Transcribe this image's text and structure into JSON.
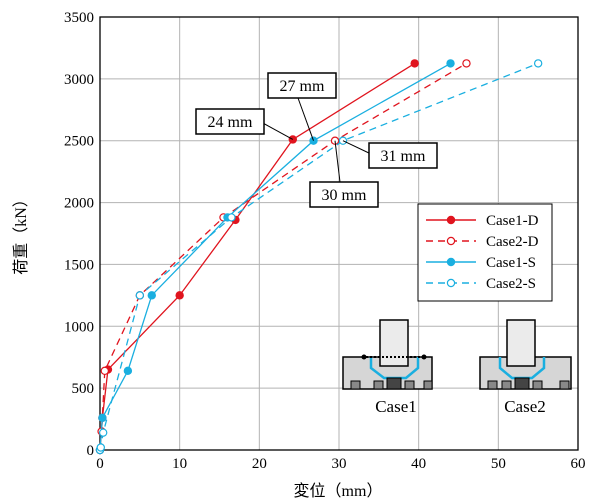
{
  "chart_data": {
    "type": "line",
    "xlabel": "変位（mm）",
    "ylabel": "荷重（kN）",
    "xlim": [
      0,
      60
    ],
    "ylim": [
      0,
      3500
    ],
    "xticks": [
      0,
      10,
      20,
      30,
      40,
      50,
      60
    ],
    "yticks": [
      0,
      500,
      1000,
      1500,
      2000,
      2500,
      3000,
      3500
    ],
    "grid": true,
    "legend_position": "right",
    "series": [
      {
        "name": "Case1-D",
        "color": "#e0141e",
        "dashed": false,
        "marker": "filled",
        "x": [
          0,
          0.3,
          1.0,
          10.0,
          17.0,
          24.2,
          39.5
        ],
        "y": [
          0,
          260,
          650,
          1250,
          1860,
          2510,
          3125
        ]
      },
      {
        "name": "Case2-D",
        "color": "#e0141e",
        "dashed": true,
        "marker": "open",
        "x": [
          0,
          0.2,
          0.6,
          5.0,
          15.5,
          29.5,
          46.0
        ],
        "y": [
          0,
          150,
          640,
          1250,
          1880,
          2500,
          3125
        ]
      },
      {
        "name": "Case1-S",
        "color": "#1aafe0",
        "dashed": false,
        "marker": "filled",
        "x": [
          0,
          0.3,
          3.5,
          6.5,
          16.0,
          26.8,
          44.0
        ],
        "y": [
          0,
          260,
          640,
          1250,
          1880,
          2500,
          3125
        ]
      },
      {
        "name": "Case2-S",
        "color": "#1aafe0",
        "dashed": true,
        "marker": "open",
        "x": [
          0,
          0.1,
          0.4,
          5.0,
          16.5,
          30.5,
          55.0
        ],
        "y": [
          0,
          20,
          140,
          1250,
          1880,
          2500,
          3125
        ]
      }
    ],
    "annotations": [
      {
        "text": "24 mm",
        "x": 24.2,
        "y": 2510
      },
      {
        "text": "27 mm",
        "x": 26.8,
        "y": 2500
      },
      {
        "text": "30 mm",
        "x": 29.5,
        "y": 2500
      },
      {
        "text": "31 mm",
        "x": 30.5,
        "y": 2500
      }
    ],
    "inset_labels": [
      "Case1",
      "Case2"
    ]
  }
}
